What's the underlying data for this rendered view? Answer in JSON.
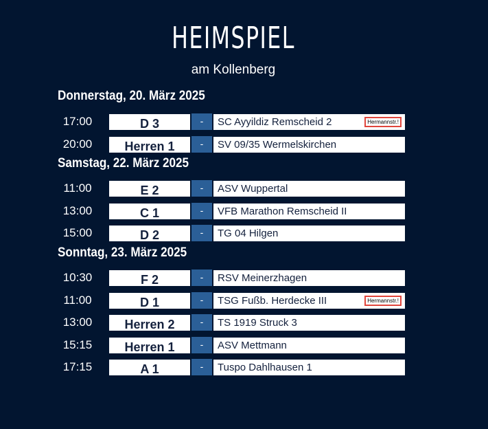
{
  "header": {
    "title": "HEIMSPIEL",
    "subtitle": "am Kollenberg"
  },
  "days": [
    {
      "label": "Donnerstag, 20. März 2025",
      "games": [
        {
          "time": "17:00",
          "team": "D 3",
          "separator": "-",
          "opponent": "SC Ayyildiz Remscheid 2",
          "venue": "Hermannstr.!"
        },
        {
          "time": "20:00",
          "team": "Herren 1",
          "separator": "-",
          "opponent": "SV 09/35 Wermelskirchen"
        }
      ]
    },
    {
      "label": "Samstag, 22. März 2025",
      "games": [
        {
          "time": "11:00",
          "team": "E 2",
          "separator": "-",
          "opponent": "ASV Wuppertal"
        },
        {
          "time": "13:00",
          "team": "C 1",
          "separator": "-",
          "opponent": "VFB Marathon Remscheid II"
        },
        {
          "time": "15:00",
          "team": "D 2",
          "separator": "-",
          "opponent": "TG 04 Hilgen"
        }
      ]
    },
    {
      "label": "Sonntag, 23. März 2025",
      "games": [
        {
          "time": "10:30",
          "team": "F 2",
          "separator": "-",
          "opponent": "RSV Meinerzhagen"
        },
        {
          "time": "11:00",
          "team": "D 1",
          "separator": "-",
          "opponent": "TSG Fußb. Herdecke III",
          "venue": "Hermannstr.!"
        },
        {
          "time": "13:00",
          "team": "Herren 2",
          "separator": "-",
          "opponent": "TS 1919 Struck 3"
        },
        {
          "time": "15:15",
          "team": "Herren 1",
          "separator": "-",
          "opponent": "ASV Mettmann"
        },
        {
          "time": "17:15",
          "team": "A 1",
          "separator": "-",
          "opponent": "Tuspo Dahlhausen 1"
        }
      ]
    }
  ],
  "colors": {
    "background": "#021530",
    "accent": "#2b5f97",
    "venue_border": "#e0453c"
  }
}
